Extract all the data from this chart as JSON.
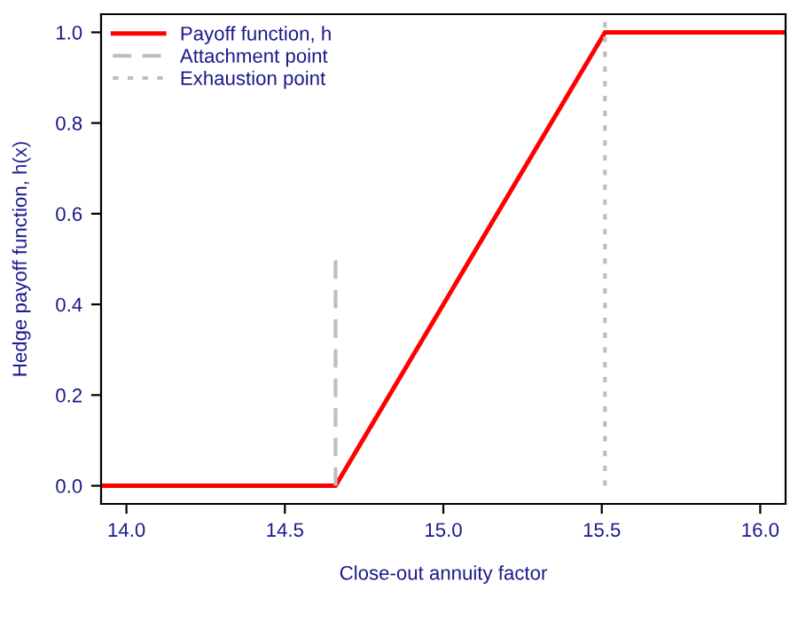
{
  "chart_data": {
    "type": "line",
    "xlabel": "Close-out annuity factor",
    "ylabel": "Hedge payoff function, h(x)",
    "series": [
      {
        "name": "Payoff function, h",
        "color": "#ff0000",
        "line_style": "solid",
        "x": [
          13.92,
          14.66,
          15.51,
          16.08
        ],
        "values": [
          0,
          0,
          1,
          1
        ]
      },
      {
        "name": "Attachment point",
        "color": "#bebebe",
        "line_style": "dashed",
        "x": [
          14.66,
          14.66
        ],
        "values": [
          0,
          0.5
        ]
      },
      {
        "name": "Exhaustion point",
        "color": "#bebebe",
        "line_style": "dotted",
        "x": [
          15.51,
          15.51
        ],
        "values": [
          0,
          1.04
        ]
      }
    ],
    "xlim": [
      13.92,
      16.08
    ],
    "ylim": [
      -0.04,
      1.04
    ],
    "xticks": [
      {
        "value": 14,
        "label": "14.0"
      },
      {
        "value": 14.5,
        "label": "14.5"
      },
      {
        "value": 15,
        "label": "15.0"
      },
      {
        "value": 15.5,
        "label": "15.5"
      },
      {
        "value": 16,
        "label": "16.0"
      }
    ],
    "yticks": [
      {
        "value": 0,
        "label": "0.0"
      },
      {
        "value": 0.2,
        "label": "0.2"
      },
      {
        "value": 0.4,
        "label": "0.4"
      },
      {
        "value": 0.6,
        "label": "0.6"
      },
      {
        "value": 0.8,
        "label": "0.8"
      },
      {
        "value": 1,
        "label": "1.0"
      }
    ],
    "grid": false,
    "legend": "top left",
    "marker": "none"
  }
}
